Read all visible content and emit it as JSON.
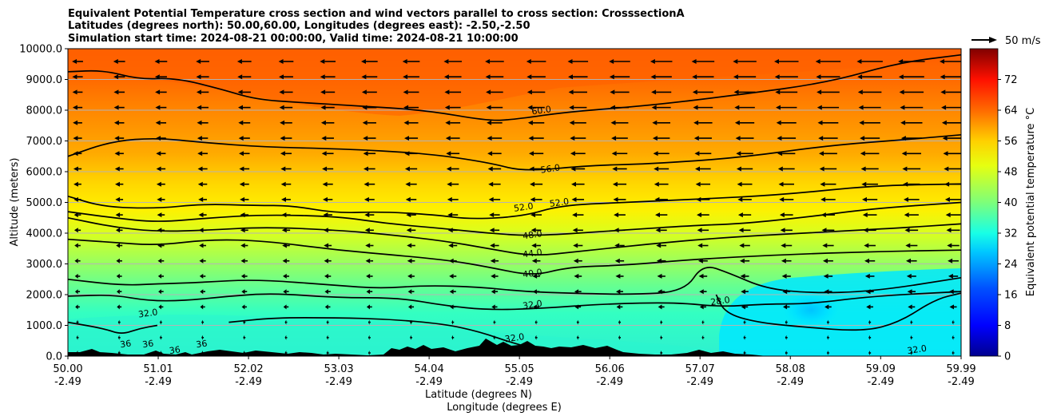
{
  "chart_data": {
    "type": "contourf",
    "title_lines": [
      "Equivalent Potential Temperature cross section and wind vectors parallel to cross section: CrosssectionA",
      "Latitudes (degrees north): 50.00,60.00, Longitudes (degrees east): -2.50,-2.50",
      "Simulation start time: 2024-08-21 00:00:00, Valid time: 2024-08-21 10:00:00"
    ],
    "ylabel": "Altitude (meters)",
    "xlabel_lat": "Latitude (degrees N)",
    "xlabel_lon": "Longitude (degrees E)",
    "ylim": [
      0,
      10000
    ],
    "yticks": [
      "0.0",
      "1000.0",
      "2000.0",
      "3000.0",
      "4000.0",
      "5000.0",
      "6000.0",
      "7000.0",
      "8000.0",
      "9000.0",
      "10000.0"
    ],
    "xlim": [
      50.0,
      59.99
    ],
    "xticks": [
      {
        "lat": "50.00",
        "lon": "-2.49"
      },
      {
        "lat": "51.01",
        "lon": "-2.49"
      },
      {
        "lat": "52.02",
        "lon": "-2.49"
      },
      {
        "lat": "53.03",
        "lon": "-2.49"
      },
      {
        "lat": "54.04",
        "lon": "-2.49"
      },
      {
        "lat": "55.05",
        "lon": "-2.49"
      },
      {
        "lat": "56.06",
        "lon": "-2.49"
      },
      {
        "lat": "57.07",
        "lon": "-2.49"
      },
      {
        "lat": "58.08",
        "lon": "-2.49"
      },
      {
        "lat": "59.09",
        "lon": "-2.49"
      },
      {
        "lat": "59.99",
        "lon": "-2.49"
      }
    ],
    "colorbar": {
      "label": "Equivalent potential temperature °C",
      "range": [
        0,
        80
      ],
      "ticks": [
        "0",
        "8",
        "16",
        "24",
        "32",
        "40",
        "48",
        "56",
        "64",
        "72"
      ]
    },
    "quiver_key_label": "50 m/s",
    "contour_levels": [
      28,
      32,
      36,
      40,
      44,
      48,
      52,
      56,
      60
    ],
    "contour_labels": [
      {
        "text": "60.0",
        "lat": 55.3,
        "alt": 7900
      },
      {
        "text": "56.0",
        "lat": 55.4,
        "alt": 6000
      },
      {
        "text": "52.0",
        "lat": 55.1,
        "alt": 4750
      },
      {
        "text": "52.0",
        "lat": 55.5,
        "alt": 4900
      },
      {
        "text": "48.0",
        "lat": 55.2,
        "alt": 3850
      },
      {
        "text": "44.0",
        "lat": 55.2,
        "alt": 3250
      },
      {
        "text": "40.0",
        "lat": 55.2,
        "alt": 2600
      },
      {
        "text": "32.0",
        "lat": 55.2,
        "alt": 1580
      },
      {
        "text": "32.0",
        "lat": 55.0,
        "alt": 500
      },
      {
        "text": "32.0",
        "lat": 50.9,
        "alt": 1300
      },
      {
        "text": "28.0",
        "lat": 57.3,
        "alt": 1700
      },
      {
        "text": "32.0",
        "lat": 59.5,
        "alt": 120
      },
      {
        "text": "36",
        "lat": 50.65,
        "alt": 300
      },
      {
        "text": "36",
        "lat": 50.9,
        "alt": 300
      },
      {
        "text": "36",
        "lat": 51.2,
        "alt": 100
      },
      {
        "text": "36",
        "lat": 51.5,
        "alt": 300
      }
    ],
    "contour_lines": [
      {
        "level": 60,
        "points": [
          [
            50.0,
            9250
          ],
          [
            50.4,
            9300
          ],
          [
            50.8,
            9000
          ],
          [
            51.2,
            9050
          ],
          [
            51.7,
            8700
          ],
          [
            52.1,
            8350
          ],
          [
            52.6,
            8250
          ],
          [
            53.2,
            8150
          ],
          [
            54.0,
            8000
          ],
          [
            54.7,
            7650
          ],
          [
            55.0,
            7700
          ],
          [
            55.6,
            7950
          ],
          [
            56.5,
            8150
          ],
          [
            57.5,
            8500
          ],
          [
            58.5,
            8900
          ],
          [
            59.3,
            9550
          ],
          [
            59.99,
            9800
          ]
        ]
      },
      {
        "level": 56,
        "points": [
          [
            50.0,
            6500
          ],
          [
            50.5,
            7000
          ],
          [
            51.0,
            7100
          ],
          [
            51.5,
            6950
          ],
          [
            52.2,
            6800
          ],
          [
            53.0,
            6750
          ],
          [
            54.0,
            6600
          ],
          [
            54.7,
            6300
          ],
          [
            55.1,
            6000
          ],
          [
            55.8,
            6200
          ],
          [
            56.5,
            6250
          ],
          [
            57.5,
            6450
          ],
          [
            58.5,
            6850
          ],
          [
            59.4,
            7050
          ],
          [
            59.99,
            7200
          ]
        ]
      },
      {
        "level": 52,
        "points": [
          [
            50.0,
            5200
          ],
          [
            50.4,
            4850
          ],
          [
            51.0,
            4800
          ],
          [
            51.5,
            4950
          ],
          [
            52.1,
            4900
          ],
          [
            52.5,
            4900
          ],
          [
            53.0,
            4650
          ],
          [
            53.5,
            4700
          ],
          [
            54.1,
            4600
          ],
          [
            54.5,
            4450
          ],
          [
            55.1,
            4550
          ],
          [
            55.5,
            4900
          ],
          [
            56.2,
            5000
          ],
          [
            57.0,
            5100
          ],
          [
            58.0,
            5250
          ],
          [
            59.0,
            5550
          ],
          [
            59.99,
            5600
          ]
        ]
      },
      {
        "level": 48,
        "points": [
          [
            50.0,
            4700
          ],
          [
            50.5,
            4500
          ],
          [
            51.0,
            4350
          ],
          [
            51.6,
            4500
          ],
          [
            52.2,
            4600
          ],
          [
            53.0,
            4550
          ],
          [
            53.6,
            4300
          ],
          [
            54.2,
            4150
          ],
          [
            54.7,
            4000
          ],
          [
            55.2,
            3900
          ],
          [
            56.2,
            4100
          ],
          [
            57.0,
            4250
          ],
          [
            57.5,
            4300
          ],
          [
            58.2,
            4500
          ],
          [
            59.0,
            4800
          ],
          [
            59.99,
            5000
          ]
        ]
      },
      {
        "level": 44,
        "points": [
          [
            50.0,
            4500
          ],
          [
            50.5,
            4200
          ],
          [
            51.0,
            4050
          ],
          [
            51.6,
            4100
          ],
          [
            52.2,
            4200
          ],
          [
            53.0,
            4100
          ],
          [
            53.6,
            3950
          ],
          [
            54.2,
            3750
          ],
          [
            54.7,
            3500
          ],
          [
            55.2,
            3250
          ],
          [
            55.7,
            3400
          ],
          [
            56.5,
            3650
          ],
          [
            57.3,
            3850
          ],
          [
            58.2,
            4000
          ],
          [
            59.2,
            4150
          ],
          [
            59.99,
            4300
          ]
        ]
      },
      {
        "level": 40,
        "points": [
          [
            50.0,
            3800
          ],
          [
            50.5,
            3700
          ],
          [
            51.0,
            3600
          ],
          [
            51.6,
            3800
          ],
          [
            52.2,
            3750
          ],
          [
            53.0,
            3450
          ],
          [
            53.8,
            3250
          ],
          [
            54.3,
            3100
          ],
          [
            54.7,
            2900
          ],
          [
            55.2,
            2600
          ],
          [
            55.6,
            2900
          ],
          [
            56.2,
            2950
          ],
          [
            57.0,
            3150
          ],
          [
            58.0,
            3300
          ],
          [
            59.0,
            3400
          ],
          [
            59.99,
            3450
          ]
        ]
      },
      {
        "level": 36,
        "points": [
          [
            50.0,
            2500
          ],
          [
            50.6,
            2300
          ],
          [
            51.0,
            2350
          ],
          [
            51.5,
            2400
          ],
          [
            52.1,
            2500
          ],
          [
            53.0,
            2300
          ],
          [
            53.5,
            2200
          ],
          [
            54.0,
            2300
          ],
          [
            54.6,
            2250
          ],
          [
            55.1,
            2100
          ],
          [
            55.6,
            2050
          ],
          [
            56.3,
            2000
          ],
          [
            56.9,
            2100
          ],
          [
            57.1,
            3000
          ],
          [
            57.4,
            2700
          ],
          [
            57.8,
            2200
          ],
          [
            58.3,
            2050
          ],
          [
            59.0,
            2100
          ],
          [
            59.99,
            2550
          ]
        ]
      },
      {
        "level": 32,
        "points": [
          [
            50.0,
            1950
          ],
          [
            50.5,
            2000
          ],
          [
            50.9,
            1800
          ],
          [
            51.3,
            1800
          ],
          [
            51.8,
            1950
          ],
          [
            52.3,
            2050
          ],
          [
            53.0,
            1900
          ],
          [
            53.7,
            1900
          ],
          [
            54.2,
            1650
          ],
          [
            54.7,
            1500
          ],
          [
            55.3,
            1550
          ],
          [
            56.0,
            1700
          ],
          [
            56.8,
            1750
          ],
          [
            57.3,
            1600
          ],
          [
            57.8,
            1700
          ],
          [
            58.3,
            1700
          ],
          [
            59.0,
            1950
          ],
          [
            59.99,
            2100
          ]
        ]
      },
      {
        "level": 28,
        "points": [
          [
            57.25,
            2000
          ],
          [
            57.35,
            1400
          ],
          [
            57.7,
            1100
          ],
          [
            58.2,
            950
          ],
          [
            58.9,
            800
          ],
          [
            59.3,
            1100
          ],
          [
            59.7,
            1850
          ],
          [
            59.99,
            2050
          ]
        ]
      },
      {
        "level": 32,
        "points": [
          [
            50.0,
            1100
          ],
          [
            50.4,
            900
          ],
          [
            50.6,
            700
          ],
          [
            50.8,
            900
          ],
          [
            51.0,
            1000
          ]
        ]
      },
      {
        "level": 32,
        "points": [
          [
            51.8,
            1100
          ],
          [
            52.3,
            1250
          ],
          [
            53.0,
            1250
          ],
          [
            53.6,
            1200
          ],
          [
            54.2,
            1050
          ],
          [
            54.6,
            800
          ],
          [
            55.0,
            400
          ],
          [
            55.3,
            200
          ],
          [
            55.6,
            0
          ]
        ]
      }
    ]
  }
}
